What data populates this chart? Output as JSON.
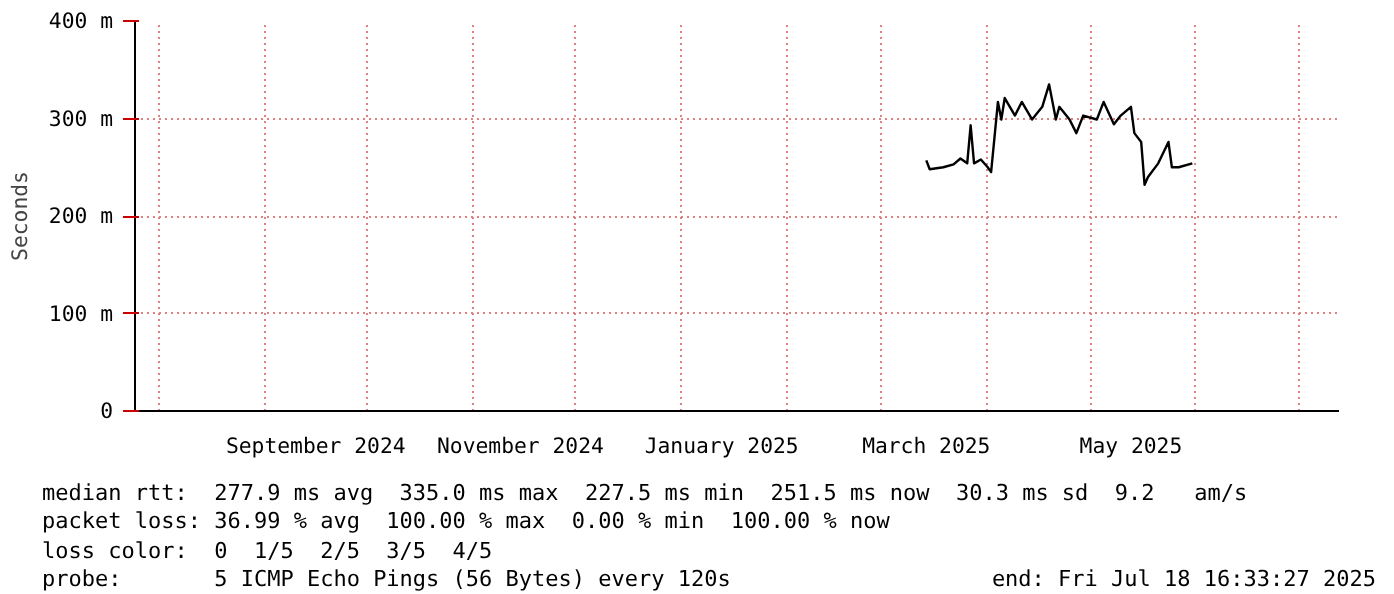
{
  "chart_data": {
    "type": "line",
    "ylabel": "Seconds",
    "x": [
      "2025-03-14",
      "2025-03-15",
      "2025-03-19",
      "2025-03-22",
      "2025-03-24",
      "2025-03-26",
      "2025-03-27",
      "2025-03-28",
      "2025-03-30",
      "2025-04-01",
      "2025-04-02",
      "2025-04-03",
      "2025-04-04",
      "2025-04-05",
      "2025-04-06",
      "2025-04-09",
      "2025-04-11",
      "2025-04-14",
      "2025-04-17",
      "2025-04-19",
      "2025-04-21",
      "2025-04-22",
      "2025-04-25",
      "2025-04-27",
      "2025-04-29",
      "2025-05-03",
      "2025-05-05",
      "2025-05-08",
      "2025-05-10",
      "2025-05-13",
      "2025-05-14",
      "2025-05-16",
      "2025-05-17",
      "2025-05-18",
      "2025-05-21",
      "2025-05-24",
      "2025-05-25",
      "2025-05-27",
      "2025-05-31"
    ],
    "series": [
      {
        "color": "#000000",
        "values": [
          257,
          248,
          250,
          253,
          259,
          254,
          293,
          254,
          258,
          250,
          245,
          281,
          317,
          299,
          321,
          303,
          317,
          299,
          312,
          335,
          299,
          312,
          299,
          285,
          303,
          299,
          317,
          294,
          303,
          312,
          285,
          276,
          232,
          240,
          254,
          276,
          250,
          250,
          254
        ]
      }
    ],
    "xlim": [
      "2024-07-25",
      "2025-07-13"
    ],
    "xticks": [
      {
        "value": "2024-08-01",
        "label": null
      },
      {
        "value": "2024-09-01",
        "label": null
      },
      {
        "value": "2024-09-16",
        "label": "September 2024"
      },
      {
        "value": "2024-10-01",
        "label": null
      },
      {
        "value": "2024-11-01",
        "label": null
      },
      {
        "value": "2024-11-15",
        "label": "November 2024"
      },
      {
        "value": "2024-12-01",
        "label": null
      },
      {
        "value": "2025-01-01",
        "label": null
      },
      {
        "value": "2025-01-13",
        "label": "January 2025"
      },
      {
        "value": "2025-02-01",
        "label": null
      },
      {
        "value": "2025-03-01",
        "label": null
      },
      {
        "value": "2025-03-14",
        "label": "March 2025"
      },
      {
        "value": "2025-04-01",
        "label": null
      },
      {
        "value": "2025-05-01",
        "label": null
      },
      {
        "value": "2025-05-13",
        "label": "May 2025"
      },
      {
        "value": "2025-06-01",
        "label": null
      },
      {
        "value": "2025-07-01",
        "label": null
      }
    ],
    "ylim": [
      0,
      400
    ],
    "yticks": [
      0,
      {
        "value": 100,
        "label": "100 m"
      },
      {
        "value": 200,
        "label": "200 m"
      },
      {
        "value": 300,
        "label": "300 m"
      },
      {
        "value": 400,
        "label": "400 m"
      }
    ],
    "grid": true,
    "annotations": [
      "median rtt:  277.9 ms avg  335.0 ms max  227.5 ms min  251.5 ms now  30.3 ms sd  9.2   am/s",
      "packet loss: 36.99 % avg  100.00 % max  0.00 % min  100.00 % now",
      "loss color:  0  1/5  2/5  3/5  4/5",
      "probe:       5 ICMP Echo Pings (56 Bytes) every 120s",
      "end: Fri Jul 18 16:33:27 2025"
    ]
  }
}
